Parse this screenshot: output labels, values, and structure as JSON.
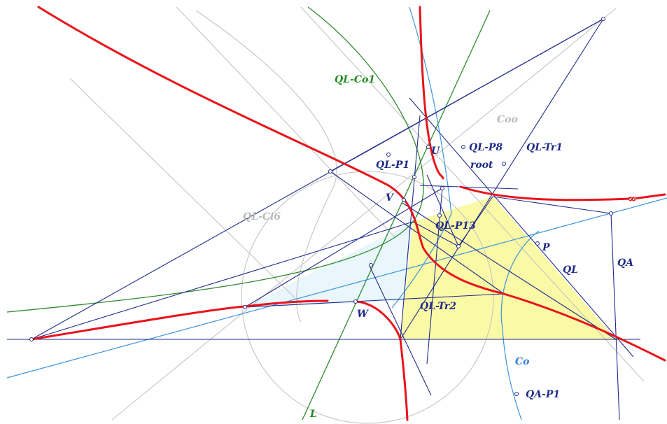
{
  "labels": {
    "ql_co1": "QL-Co1",
    "coo": "Coo",
    "ql_p8": "QL-P8",
    "ql_tr1": "QL-Tr1",
    "u": "U",
    "root": "root",
    "ql_p1": "QL-P1",
    "v": "V",
    "ql_ci6": "QL-Ci6",
    "ql_p13": "QL-P13",
    "p": "P",
    "ql": "QL",
    "qa": "QA",
    "ql_tr2": "QL-Tr2",
    "w": "W",
    "co": "Co",
    "qa_p1": "QA-P1",
    "l": "L",
    "infinity": "∞"
  },
  "colors": {
    "navy": "#1f2a8a",
    "red": "#e8141c",
    "green": "#2e8b2e",
    "light_blue": "#3d95dd",
    "grey": "#c4c4c4",
    "yellow_fill": "#fafaa6",
    "cyan_fill": "#e9f6fb"
  }
}
